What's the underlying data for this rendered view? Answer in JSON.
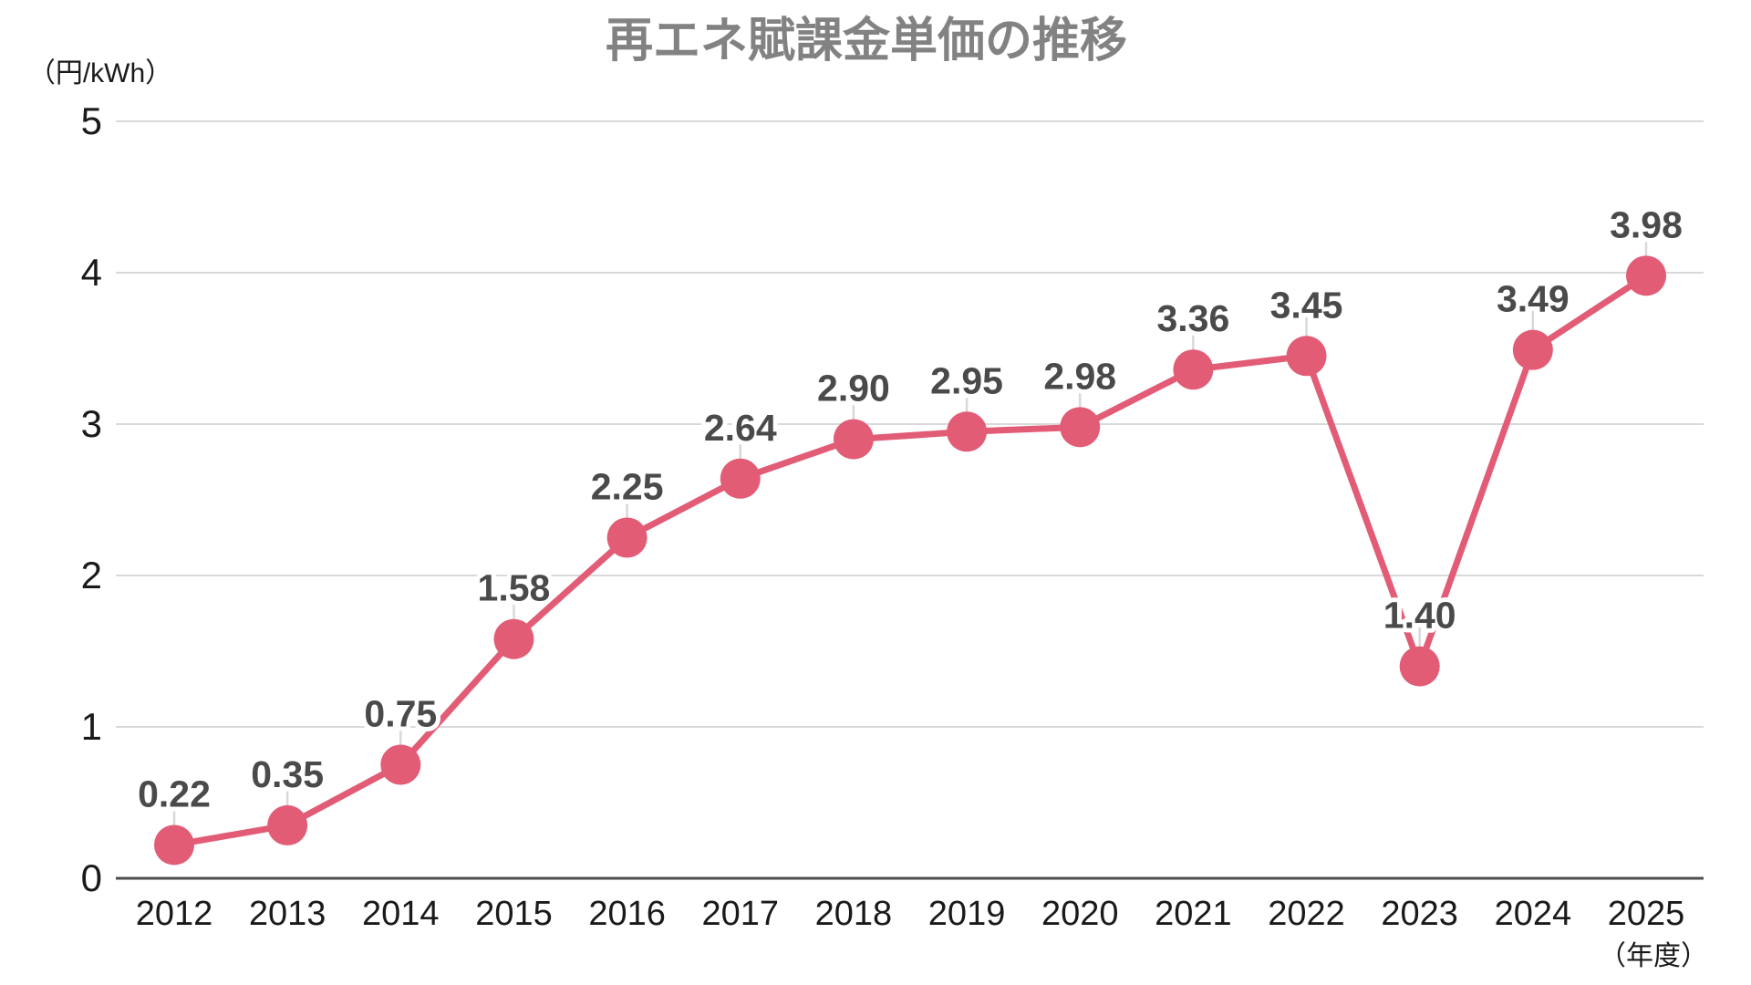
{
  "title": "再エネ賦課金単価の推移",
  "y_axis_unit": "（円/kWh）",
  "x_axis_unit": "（年度）",
  "colors": {
    "background": "#ffffff",
    "title": "#828282",
    "line": "#e25c76",
    "marker": "#e25c76",
    "value_label": "#4a4a4a",
    "grid": "#d9d9d9",
    "axis": "#4d4d4d",
    "tick_text": "#1a1a1a",
    "leader": "#d8d8d8"
  },
  "chart_data": {
    "type": "line",
    "title": "再エネ賦課金単価の推移",
    "ylabel": "（円/kWh）",
    "xlabel": "（年度）",
    "categories": [
      "2012",
      "2013",
      "2014",
      "2015",
      "2016",
      "2017",
      "2018",
      "2019",
      "2020",
      "2021",
      "2022",
      "2023",
      "2024",
      "2025"
    ],
    "values": [
      0.22,
      0.35,
      0.75,
      1.58,
      2.25,
      2.64,
      2.9,
      2.95,
      2.98,
      3.36,
      3.45,
      1.4,
      3.49,
      3.98
    ],
    "data_labels": [
      "0.22",
      "0.35",
      "0.75",
      "1.58",
      "2.25",
      "2.64",
      "2.90",
      "2.95",
      "2.98",
      "3.36",
      "3.45",
      "1.40",
      "3.49",
      "3.98"
    ],
    "ylim": [
      0,
      5
    ],
    "yticks": [
      0,
      1,
      2,
      3,
      4,
      5
    ],
    "grid": "horizontal",
    "legend": "none",
    "markers": "circle"
  }
}
